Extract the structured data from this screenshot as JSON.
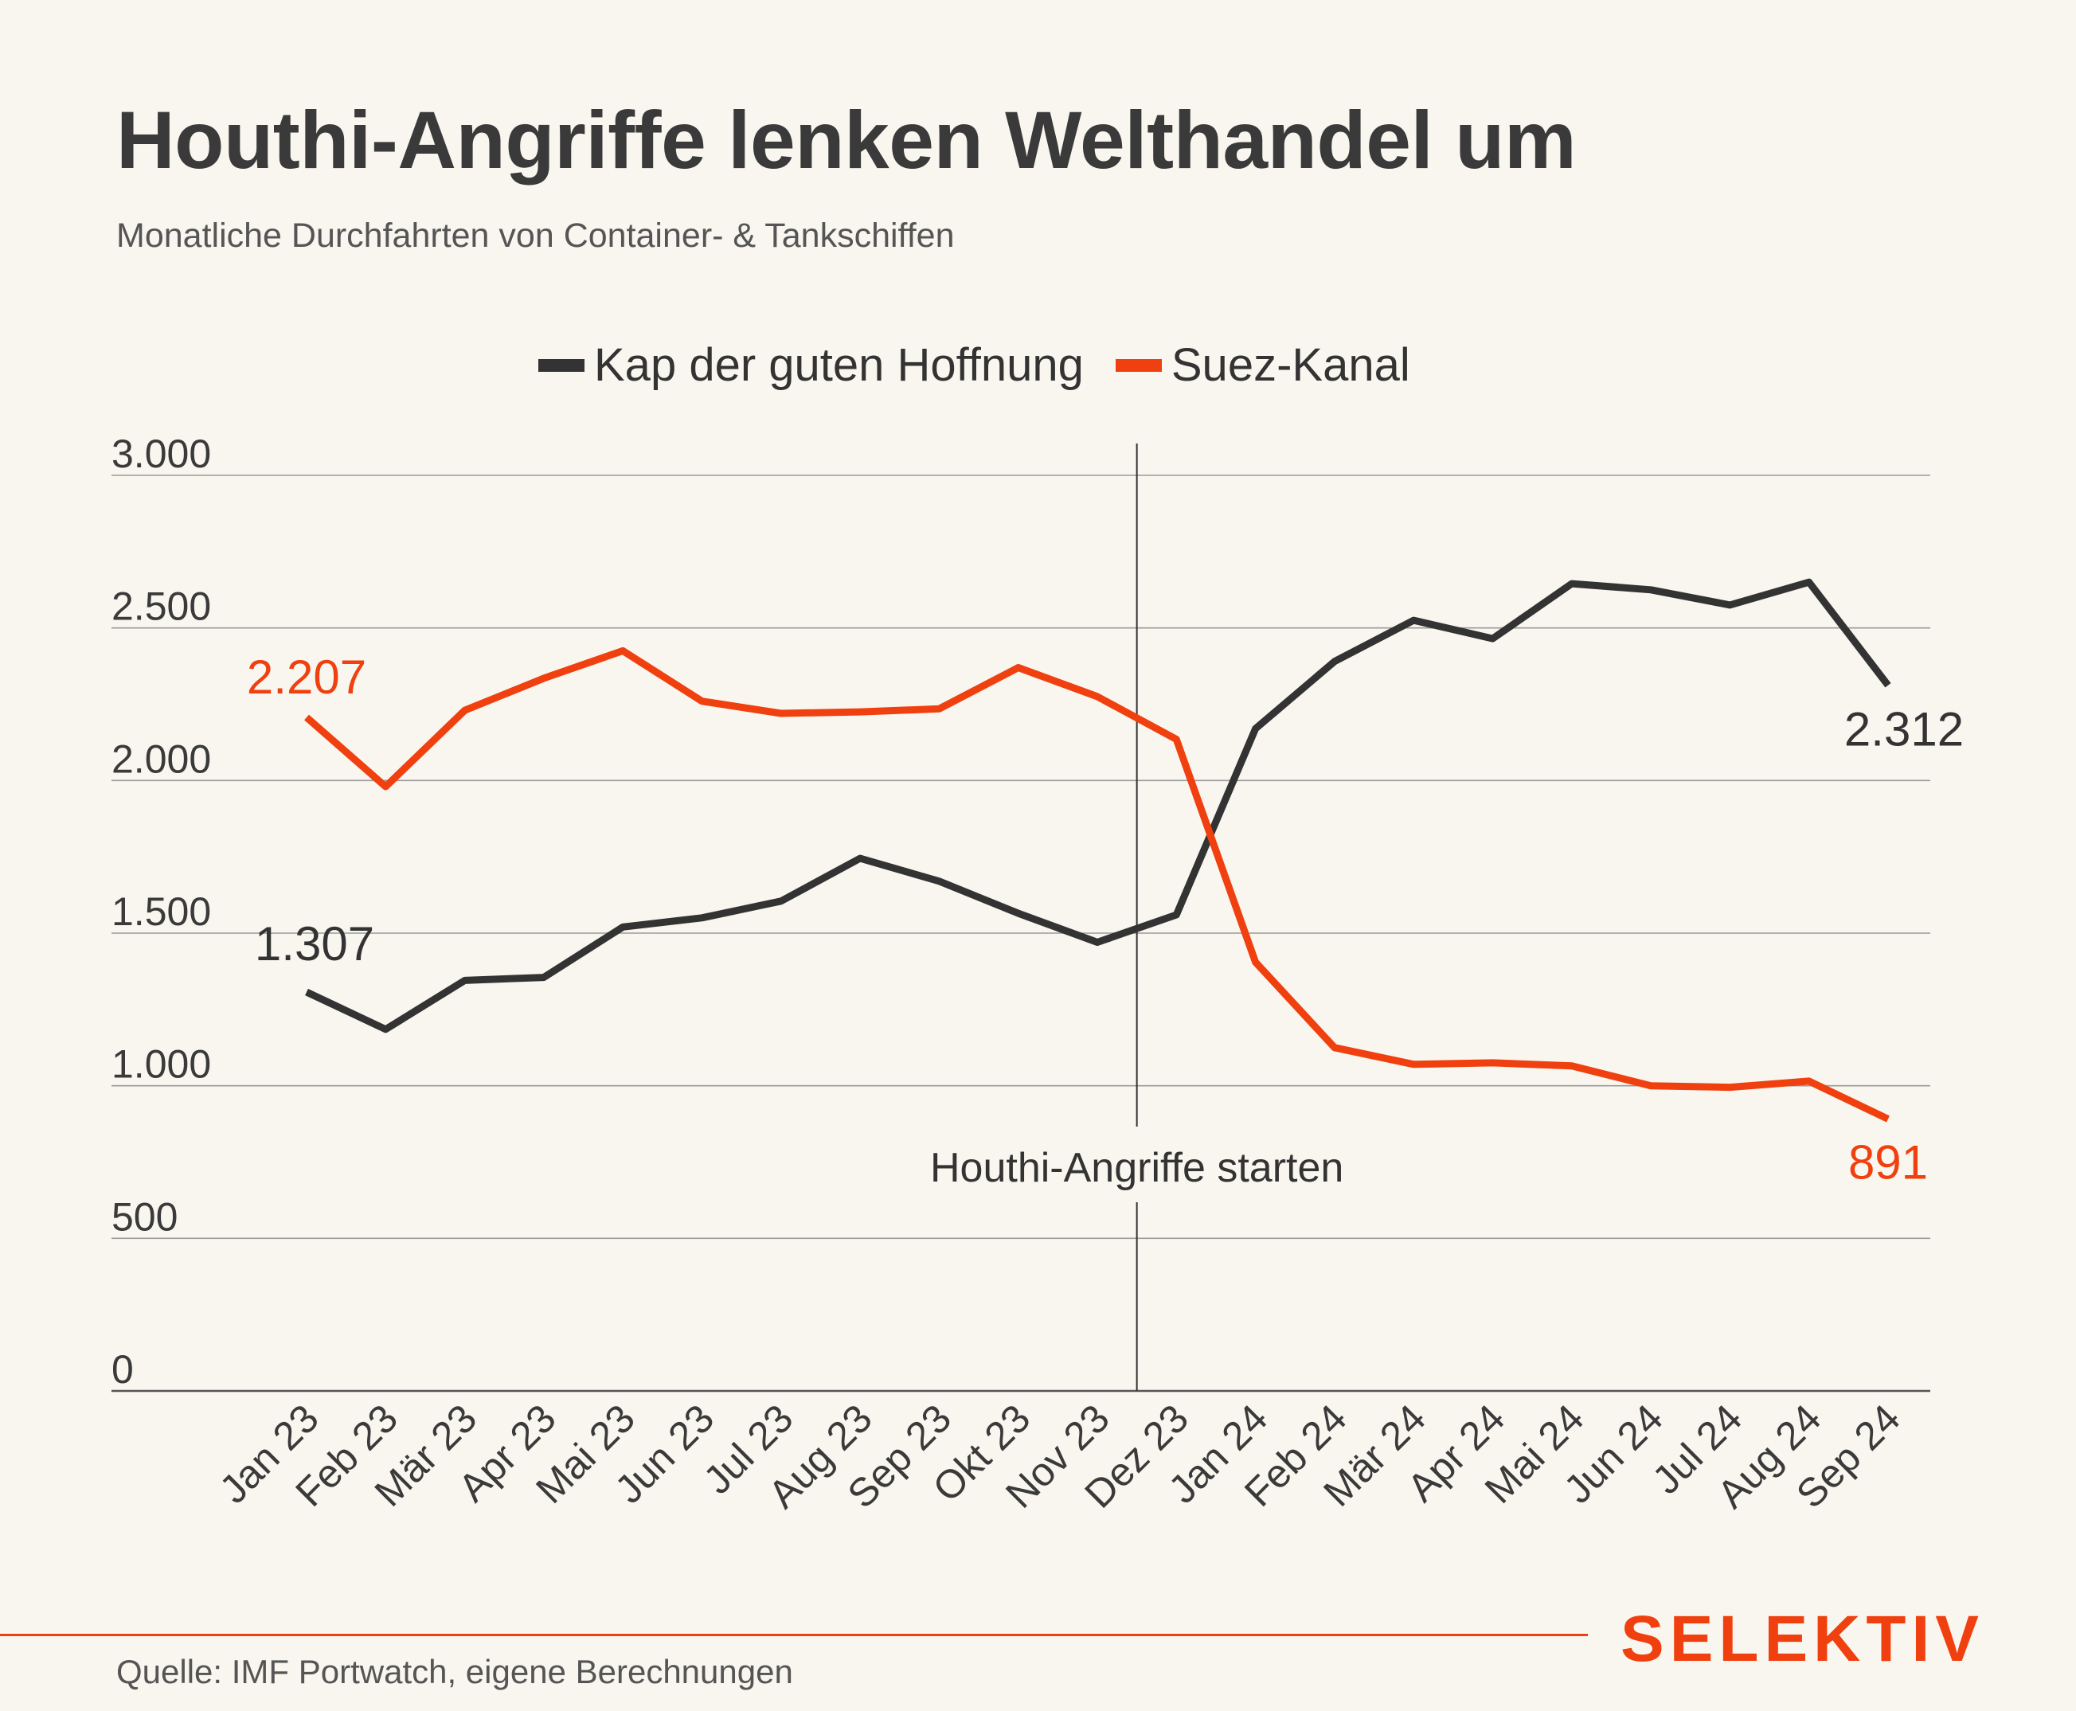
{
  "title": "Houthi-Angriffe lenken Welthandel um",
  "subtitle": "Monatliche Durchfahrten von Container- & Tankschiffen",
  "source": "Quelle: IMF Portwatch, eigene Berechnungen",
  "brand": "SELEKTIV",
  "colors": {
    "background": "#f8f6ee",
    "kap": "#333333",
    "suez": "#f0400f",
    "grid": "#9a9a9a",
    "text": "#333333"
  },
  "chart_data": {
    "type": "line",
    "title": "Houthi-Angriffe lenken Welthandel um",
    "subtitle": "Monatliche Durchfahrten von Container- & Tankschiffen",
    "categories": [
      "Jan 23",
      "Feb 23",
      "Mär 23",
      "Apr 23",
      "Mai 23",
      "Jun 23",
      "Jul 23",
      "Aug 23",
      "Sep 23",
      "Okt 23",
      "Nov 23",
      "Dez 23",
      "Jan 24",
      "Feb 24",
      "Mär 24",
      "Apr 24",
      "Mai 24",
      "Jun 24",
      "Jul 24",
      "Aug 24",
      "Sep 24"
    ],
    "yticks": [
      0,
      500,
      1000,
      1500,
      2000,
      2500,
      3000
    ],
    "ytick_labels": [
      "0",
      "500",
      "1.000",
      "1.500",
      "2.000",
      "2.500",
      "3.000"
    ],
    "ylim": [
      0,
      3000
    ],
    "grid": true,
    "legend_position": "top-center",
    "series": [
      {
        "name": "Kap der guten Hoffnung",
        "color": "#333333",
        "values": [
          1307,
          1185,
          1345,
          1355,
          1520,
          1550,
          1605,
          1745,
          1670,
          1565,
          1470,
          1560,
          2170,
          2390,
          2525,
          2465,
          2645,
          2625,
          2575,
          2650,
          2312
        ],
        "start_label": "1.307",
        "end_label": "2.312"
      },
      {
        "name": "Suez-Kanal",
        "color": "#f0400f",
        "values": [
          2207,
          1980,
          2230,
          2335,
          2425,
          2260,
          2220,
          2225,
          2235,
          2370,
          2275,
          2135,
          1405,
          1125,
          1070,
          1075,
          1065,
          1000,
          995,
          1015,
          891
        ],
        "start_label": "2.207",
        "end_label": "891"
      }
    ],
    "annotation": {
      "label": "Houthi-Angriffe starten",
      "x_between": [
        "Nov 23",
        "Dez 23"
      ]
    }
  }
}
